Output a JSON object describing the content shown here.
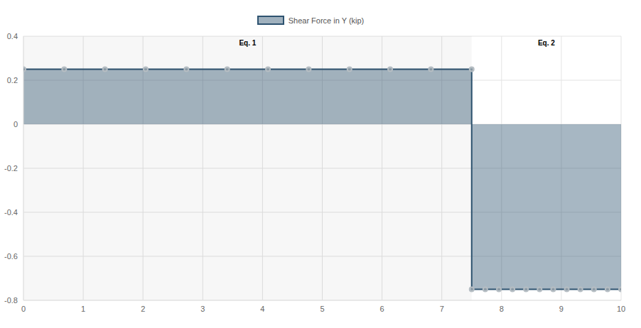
{
  "chart_data": {
    "type": "area",
    "x": [
      0,
      0.682,
      1.364,
      2.045,
      2.727,
      3.409,
      4.091,
      4.773,
      5.455,
      6.136,
      6.818,
      7.5,
      7.5,
      7.727,
      7.955,
      8.182,
      8.409,
      8.636,
      8.864,
      9.091,
      9.318,
      9.545,
      9.773,
      10
    ],
    "series": [
      {
        "name": "Shear Force in Y (kip)",
        "color": "#2e5370",
        "marker": "circle",
        "values": [
          0.25,
          0.25,
          0.25,
          0.25,
          0.25,
          0.25,
          0.25,
          0.25,
          0.25,
          0.25,
          0.25,
          0.25,
          -0.75,
          -0.75,
          -0.75,
          -0.75,
          -0.75,
          -0.75,
          -0.75,
          -0.75,
          -0.75,
          -0.75,
          -0.75,
          -0.75
        ]
      }
    ],
    "regions": [
      {
        "label": "Eq. 1",
        "x": [
          0,
          7.5
        ]
      },
      {
        "label": "Eq. 2",
        "x": [
          7.5,
          10
        ]
      }
    ],
    "xlim": [
      0,
      10
    ],
    "xticks": [
      0,
      1,
      2,
      3,
      4,
      5,
      6,
      7,
      8,
      9,
      10
    ],
    "ylim": [
      -0.8,
      0.4
    ],
    "yticks": [
      -0.8,
      -0.6,
      -0.4,
      -0.2,
      0,
      0.2,
      0.4
    ],
    "grid": true,
    "legend": "top"
  }
}
